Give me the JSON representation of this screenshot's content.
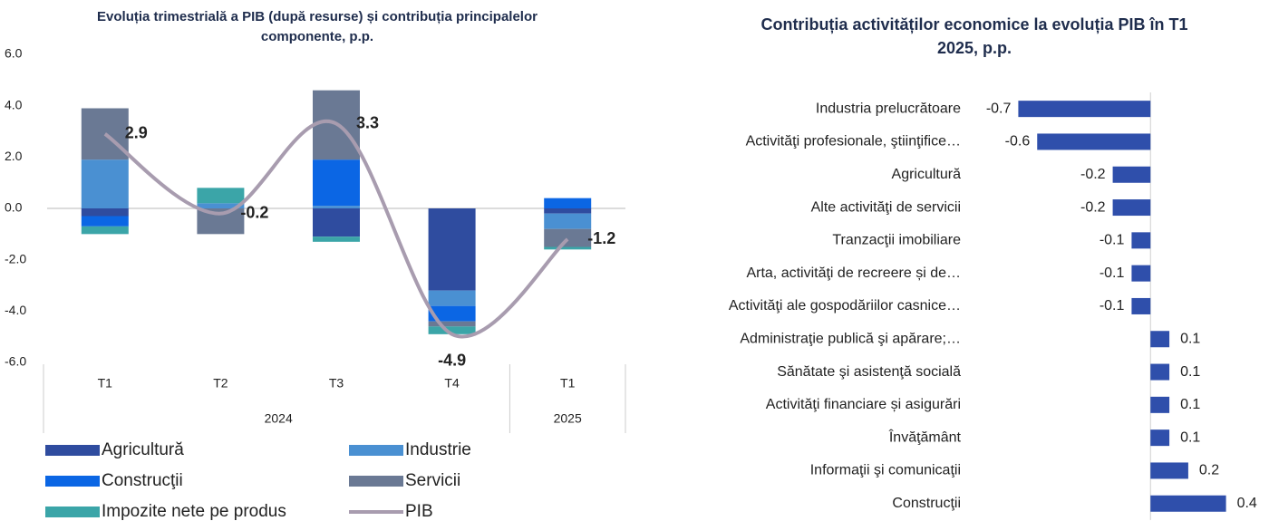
{
  "chart_data": [
    {
      "type": "stacked_bar_line",
      "title": "Evoluția trimestrială a PIB (după resurse) și contribuția principalelor componente, p.p.",
      "categories": [
        "T1",
        "T2",
        "T3",
        "T4",
        "T1"
      ],
      "x_groups": [
        {
          "label": "2024",
          "count": 4
        },
        {
          "label": "2025",
          "count": 1
        }
      ],
      "ylim": [
        -6,
        6
      ],
      "yticks": [
        {
          "value": 6,
          "label": "6.0"
        },
        {
          "value": 4,
          "label": "4.0"
        },
        {
          "value": 2,
          "label": "2.0"
        },
        {
          "value": 0,
          "label": "0.0"
        },
        {
          "value": -2,
          "label": "-2.0"
        },
        {
          "value": -4,
          "label": "-4.0"
        },
        {
          "value": -6,
          "label": "-6.0"
        }
      ],
      "series": [
        {
          "name": "Agricultură",
          "color": "#2f4c9f",
          "values": [
            -0.3,
            0,
            -1.1,
            -3.2,
            -0.2
          ]
        },
        {
          "name": "Industrie",
          "color": "#4a90d2",
          "values": [
            1.9,
            0.2,
            0.1,
            -0.6,
            -0.6
          ]
        },
        {
          "name": "Construcţii",
          "color": "#0b66e4",
          "values": [
            -0.4,
            0,
            1.8,
            -0.6,
            0.4
          ]
        },
        {
          "name": "Servicii",
          "color": "#6a7994",
          "values": [
            2.0,
            -1.0,
            2.7,
            -0.2,
            -0.7
          ]
        },
        {
          "name": "Impozite nete pe produs",
          "color": "#3ba5a8",
          "values": [
            -0.3,
            0.6,
            -0.2,
            -0.3,
            -0.1
          ]
        },
        {
          "name": "PIB",
          "color": "#a89caf",
          "type": "line",
          "values": [
            2.9,
            -0.2,
            3.3,
            -4.9,
            -1.2
          ]
        }
      ]
    },
    {
      "type": "hbar",
      "title": "Contribuția activităților economice la evoluția PIB în T1 2025, p.p.",
      "color": "#2f4fab",
      "xlim": [
        -0.75,
        0.45
      ],
      "categories": [
        "Industria prelucrătoare",
        "Activităţi profesionale, ştiinţifice…",
        "Agricultură",
        "Alte activităţi de servicii",
        "Tranzacţii imobiliare",
        "Arta, activităţi de recreere și de…",
        "Activităţi ale gospodăriilor casnice…",
        "Administraţie publică şi apărare;…",
        "Sănătate şi asistenţă socială",
        "Activităţi financiare și asigurări",
        "Învăţământ",
        "Informaţii şi comunicaţii",
        "Construcţii"
      ],
      "values": [
        -0.7,
        -0.6,
        -0.2,
        -0.2,
        -0.1,
        -0.1,
        -0.1,
        0.1,
        0.1,
        0.1,
        0.1,
        0.2,
        0.4
      ]
    }
  ]
}
